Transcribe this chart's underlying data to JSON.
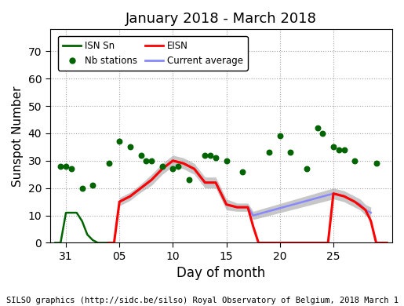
{
  "title": "January 2018 - March 2018",
  "xlabel": "Day of month",
  "ylabel": "Sunspot Number",
  "footer": "SILSO graphics (http://sidc.be/silso) Royal Observatory of Belgium, 2018 March 1",
  "ylim": [
    0,
    78
  ],
  "yticks": [
    0,
    10,
    20,
    30,
    40,
    50,
    60,
    70
  ],
  "xlim": [
    28.5,
    60.5
  ],
  "xtick_positions": [
    30,
    35,
    40,
    45,
    50,
    55
  ],
  "xtick_labels": [
    "31",
    "05",
    "10",
    "15",
    "20",
    "25"
  ],
  "isn_sn_x": [
    29.0,
    29.5,
    30.0,
    30.5,
    31.0,
    31.5,
    32.0,
    32.5,
    33.0,
    33.5,
    34.0
  ],
  "isn_sn_y": [
    0,
    0,
    11,
    11,
    11,
    8,
    3,
    1,
    0,
    0,
    0
  ],
  "eisn_x": [
    34.0,
    34.5,
    35.0,
    36.0,
    37.0,
    38.0,
    39.0,
    40.0,
    41.0,
    42.0,
    43.0,
    44.0,
    45.0,
    46.0,
    47.0,
    47.5,
    48.0,
    48.5,
    49.0,
    54.0,
    54.5,
    55.0,
    56.0,
    57.0,
    58.0,
    58.5,
    59.0,
    59.5,
    60.0
  ],
  "eisn_y": [
    0,
    0,
    15,
    17,
    20,
    23,
    27,
    30,
    29,
    27,
    22,
    22,
    14,
    13,
    13,
    6,
    0,
    0,
    0,
    0,
    0,
    18,
    17,
    15,
    12,
    8,
    0,
    0,
    0
  ],
  "avg_x": [
    35.0,
    36.0,
    37.0,
    38.0,
    39.0,
    40.0,
    41.0,
    42.0,
    43.0,
    44.0,
    45.0,
    46.0,
    47.0,
    47.5,
    55.0,
    56.0,
    57.0,
    57.5,
    58.0,
    58.5
  ],
  "avg_y": [
    15,
    17,
    20,
    23,
    27,
    30,
    29,
    27,
    22,
    22,
    14,
    13,
    13,
    10,
    18,
    17,
    15,
    14,
    12,
    11
  ],
  "avg_err": [
    1.5,
    1.5,
    1.5,
    2.0,
    2.0,
    2.0,
    2.0,
    2.0,
    2.0,
    2.0,
    2.0,
    1.5,
    1.5,
    1.5,
    2.0,
    2.0,
    2.0,
    2.0,
    2.0,
    2.0
  ],
  "nb_x": [
    29.5,
    30.0,
    30.5,
    31.5,
    32.5,
    34.0,
    35.0,
    36.0,
    37.0,
    37.5,
    38.0,
    39.0,
    40.0,
    40.5,
    41.5,
    43.0,
    43.5,
    44.0,
    45.0,
    46.5,
    49.0,
    50.0,
    51.0,
    52.5,
    53.5,
    54.0,
    55.0,
    55.5,
    56.0,
    57.0,
    59.0
  ],
  "nb_y": [
    28,
    28,
    27,
    20,
    21,
    29,
    37,
    35,
    32,
    30,
    30,
    28,
    27,
    28,
    23,
    32,
    32,
    31,
    30,
    26,
    33,
    39,
    33,
    27,
    42,
    40,
    35,
    34,
    34,
    30,
    29
  ],
  "isn_color": "#006400",
  "eisn_color": "#ff0000",
  "avg_color": "#8888ff",
  "nb_color": "#006400",
  "shade_color": "#aaaaaa",
  "background_color": "#ffffff",
  "grid_color": "#999999"
}
